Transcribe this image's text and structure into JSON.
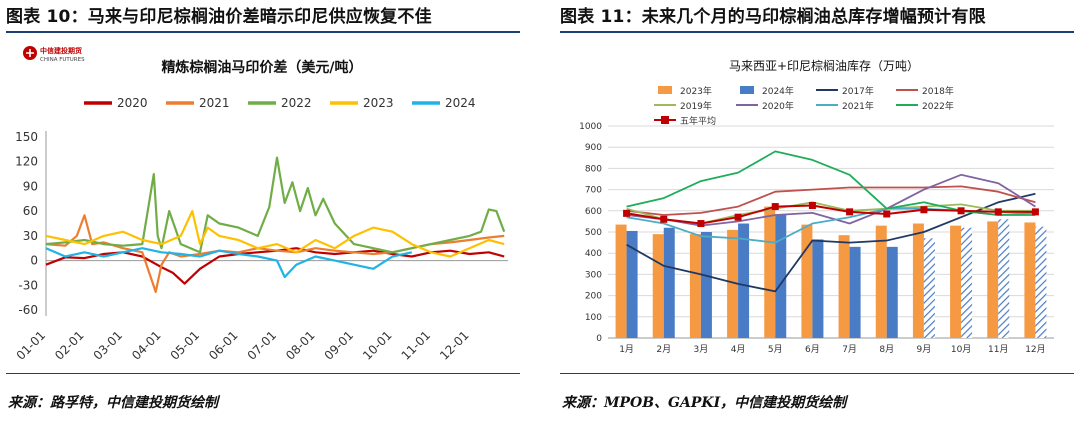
{
  "left_panel": {
    "title": "图表 10：马来与印尼棕榈油价差暗示印尼供应恢复不佳",
    "source": "来源：路孚特，中信建投期货绘制",
    "logo_cn": "中信建投期货",
    "logo_en": "CHINA FUTURES"
  },
  "right_panel": {
    "title": "图表 11：未来几个月的马印棕榈油总库存增幅预计有限",
    "source": "来源：MPOB、GAPKI，中信建投期货绘制"
  },
  "chart_data": [
    {
      "type": "line",
      "title": "精炼棕榈油马印价差（美元/吨）",
      "xlabel": "",
      "ylabel": "",
      "ylim": [
        -60,
        150
      ],
      "yticks": [
        150,
        120,
        90,
        60,
        30,
        0,
        -30,
        -60
      ],
      "xlim": [
        1,
        13
      ],
      "xticks": [
        "01-01",
        "02-01",
        "03-01",
        "04-01",
        "05-01",
        "06-01",
        "07-01",
        "08-01",
        "09-01",
        "10-01",
        "11-01",
        "12-01"
      ],
      "grid": false,
      "legend": "top",
      "series": [
        {
          "name": "2020",
          "color": "#c00000",
          "x": [
            1.0,
            1.5,
            2.0,
            2.5,
            3.0,
            3.5,
            4.0,
            4.3,
            4.6,
            5.0,
            5.5,
            6.0,
            6.5,
            7.0,
            7.5,
            8.0,
            8.5,
            9.0,
            9.5,
            10.0,
            10.5,
            11.0,
            11.5,
            12.0,
            12.5,
            12.9
          ],
          "y": [
            -5,
            4,
            3,
            8,
            10,
            5,
            -8,
            -15,
            -28,
            -10,
            5,
            8,
            10,
            12,
            15,
            10,
            8,
            10,
            12,
            8,
            5,
            10,
            12,
            8,
            10,
            5
          ]
        },
        {
          "name": "2021",
          "color": "#ed7d31",
          "x": [
            1.0,
            1.5,
            1.8,
            2.0,
            2.2,
            2.5,
            3.0,
            3.5,
            3.85,
            4.0,
            4.2,
            4.5,
            5.0,
            5.5,
            6.0,
            6.5,
            7.0,
            7.5,
            8.0,
            8.5,
            9.0,
            9.5,
            10.0,
            10.5,
            11.0,
            11.5,
            12.0,
            12.5,
            12.9
          ],
          "y": [
            20,
            18,
            30,
            55,
            20,
            22,
            15,
            10,
            -38,
            -5,
            10,
            5,
            8,
            12,
            10,
            15,
            12,
            10,
            15,
            12,
            10,
            8,
            10,
            15,
            20,
            22,
            25,
            28,
            30
          ]
        },
        {
          "name": "2022",
          "color": "#70ad47",
          "x": [
            1.0,
            1.5,
            2.0,
            2.5,
            3.0,
            3.5,
            3.8,
            3.9,
            4.0,
            4.2,
            4.5,
            5.0,
            5.2,
            5.5,
            6.0,
            6.5,
            6.8,
            7.0,
            7.2,
            7.4,
            7.6,
            7.8,
            8.0,
            8.2,
            8.5,
            9.0,
            9.5,
            10.0,
            10.5,
            11.0,
            11.5,
            12.0,
            12.3,
            12.5,
            12.7,
            12.9
          ],
          "y": [
            20,
            22,
            25,
            20,
            18,
            20,
            105,
            30,
            15,
            60,
            20,
            10,
            55,
            45,
            40,
            30,
            65,
            125,
            70,
            95,
            60,
            88,
            55,
            75,
            45,
            20,
            15,
            10,
            15,
            20,
            25,
            30,
            35,
            62,
            60,
            35
          ]
        },
        {
          "name": "2023",
          "color": "#ffc000",
          "x": [
            1.0,
            1.5,
            2.0,
            2.5,
            3.0,
            3.5,
            4.0,
            4.5,
            4.8,
            5.0,
            5.2,
            5.5,
            6.0,
            6.5,
            7.0,
            7.5,
            8.0,
            8.5,
            9.0,
            9.5,
            10.0,
            10.5,
            11.0,
            11.5,
            12.0,
            12.5,
            12.9
          ],
          "y": [
            30,
            25,
            20,
            30,
            35,
            25,
            20,
            30,
            60,
            20,
            40,
            30,
            25,
            15,
            20,
            10,
            25,
            15,
            30,
            40,
            35,
            20,
            10,
            5,
            15,
            25,
            20
          ]
        },
        {
          "name": "2024",
          "color": "#1fb3e6",
          "x": [
            1.0,
            1.5,
            2.0,
            2.5,
            3.0,
            3.5,
            4.0,
            4.5,
            5.0,
            5.5,
            6.0,
            6.5,
            7.0,
            7.2,
            7.5,
            8.0,
            8.5,
            9.0,
            9.5,
            10.0,
            10.5
          ],
          "y": [
            15,
            5,
            10,
            5,
            10,
            15,
            10,
            8,
            5,
            12,
            8,
            5,
            0,
            -20,
            -5,
            5,
            0,
            -5,
            -10,
            5,
            10
          ]
        }
      ]
    },
    {
      "type": "bar",
      "title": "马来西亚+印尼棕榈油库存（万吨）",
      "xlabel": "",
      "ylabel": "",
      "ylim": [
        0,
        1000
      ],
      "yticks": [
        0,
        100,
        200,
        300,
        400,
        500,
        600,
        700,
        800,
        900,
        1000
      ],
      "categories": [
        "1月",
        "2月",
        "3月",
        "4月",
        "5月",
        "6月",
        "7月",
        "8月",
        "9月",
        "10月",
        "11月",
        "12月"
      ],
      "grid": true,
      "legend": "top",
      "bar_series": [
        {
          "name": "2023年",
          "color": "#f59a42",
          "values": [
            535,
            490,
            490,
            510,
            620,
            535,
            485,
            530,
            540,
            530,
            550,
            545
          ]
        },
        {
          "name": "2024年",
          "color": "#4a7cc6",
          "values": [
            505,
            520,
            500,
            540,
            580,
            465,
            430,
            430,
            470,
            520,
            560,
            525
          ],
          "forecast_from_index": 8
        }
      ],
      "line_series": [
        {
          "name": "2017年",
          "color": "#1f3864",
          "values": [
            440,
            340,
            300,
            255,
            220,
            460,
            450,
            460,
            500,
            570,
            640,
            680
          ]
        },
        {
          "name": "2018年",
          "color": "#c0504d",
          "values": [
            600,
            580,
            590,
            620,
            690,
            700,
            710,
            710,
            710,
            715,
            690,
            640
          ]
        },
        {
          "name": "2019年",
          "color": "#9bbb59",
          "values": [
            610,
            560,
            540,
            580,
            610,
            640,
            600,
            610,
            620,
            630,
            600,
            600
          ]
        },
        {
          "name": "2020年",
          "color": "#8064a2",
          "values": [
            580,
            560,
            530,
            550,
            580,
            590,
            540,
            610,
            700,
            770,
            730,
            620
          ]
        },
        {
          "name": "2021年",
          "color": "#4bacc6",
          "values": [
            570,
            540,
            480,
            470,
            450,
            540,
            570,
            610,
            610,
            600,
            580,
            590
          ]
        },
        {
          "name": "2022年",
          "color": "#1fad5a",
          "values": [
            620,
            660,
            740,
            780,
            880,
            840,
            770,
            610,
            640,
            600,
            580,
            580
          ]
        },
        {
          "name": "五年平均",
          "color": "#c00000",
          "markers": true,
          "values": [
            588,
            560,
            540,
            570,
            620,
            625,
            595,
            585,
            605,
            600,
            595,
            595
          ]
        }
      ]
    }
  ]
}
